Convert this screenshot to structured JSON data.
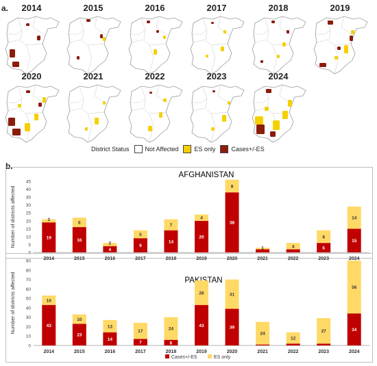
{
  "colors": {
    "cases": "#c00000",
    "es": "#ffd966",
    "map_fill": "#ffffff",
    "map_border": "#9a9a9a",
    "map_es": "#f5d000",
    "map_case": "#8b1c0a"
  },
  "panel_a": {
    "label": "a.",
    "years": [
      "2014",
      "2015",
      "2016",
      "2017",
      "2018",
      "2019",
      "2020",
      "2021",
      "2022",
      "2023",
      "2024"
    ],
    "legend": {
      "title": "District Status",
      "items": [
        "Not Affected",
        "ES only",
        "Cases+/-ES"
      ]
    }
  },
  "panel_b": {
    "label": "b."
  },
  "chart_data": [
    {
      "type": "bar",
      "stacked": true,
      "title": "AFGHANISTAN",
      "ylabel": "Number of districts affected",
      "xlabel": "",
      "ylim": [
        0,
        45
      ],
      "yticks": [
        0,
        5,
        10,
        15,
        20,
        25,
        30,
        35,
        40,
        45
      ],
      "categories": [
        "2014",
        "2015",
        "2016",
        "2017",
        "2018",
        "2019",
        "2020",
        "2021",
        "2022",
        "2023",
        "2024"
      ],
      "series": [
        {
          "name": "Cases+/-ES",
          "values": [
            19,
            16,
            4,
            9,
            14,
            20,
            38,
            2,
            2,
            6,
            15
          ]
        },
        {
          "name": "ES only",
          "values": [
            2,
            6,
            2,
            5,
            7,
            4,
            8,
            1,
            4,
            8,
            14
          ]
        }
      ],
      "labels": [
        [
          "19",
          "16",
          "4",
          "9",
          "14",
          "20",
          "38",
          "",
          "",
          "6",
          "15"
        ],
        [
          "2",
          "6",
          "2",
          "5",
          "7",
          "4",
          "8",
          "1",
          "4",
          "8",
          "14"
        ]
      ],
      "legend": "none",
      "grid": false
    },
    {
      "type": "bar",
      "stacked": true,
      "title": "PAKISTAN",
      "ylabel": "Number of districts affected",
      "xlabel": "",
      "ylim": [
        0,
        90
      ],
      "yticks": [
        0,
        10,
        20,
        30,
        40,
        50,
        60,
        70,
        80,
        90
      ],
      "categories": [
        "2014",
        "2015",
        "2016",
        "2017",
        "2018",
        "2019",
        "2020",
        "2021",
        "2022",
        "2023",
        "2024"
      ],
      "series": [
        {
          "name": "Cases+/-ES",
          "values": [
            43,
            23,
            14,
            7,
            6,
            43,
            39,
            1,
            2,
            2,
            34
          ]
        },
        {
          "name": "ES only",
          "values": [
            10,
            10,
            13,
            17,
            24,
            26,
            31,
            24,
            12,
            27,
            56
          ]
        }
      ],
      "labels": [
        [
          "43",
          "23",
          "14",
          "7",
          "6",
          "43",
          "39",
          "",
          "",
          "",
          "34"
        ],
        [
          "10",
          "10",
          "13",
          "17",
          "24",
          "26",
          "31",
          "24",
          "12",
          "27",
          "56"
        ]
      ],
      "legend": "bottom",
      "grid": false
    }
  ]
}
